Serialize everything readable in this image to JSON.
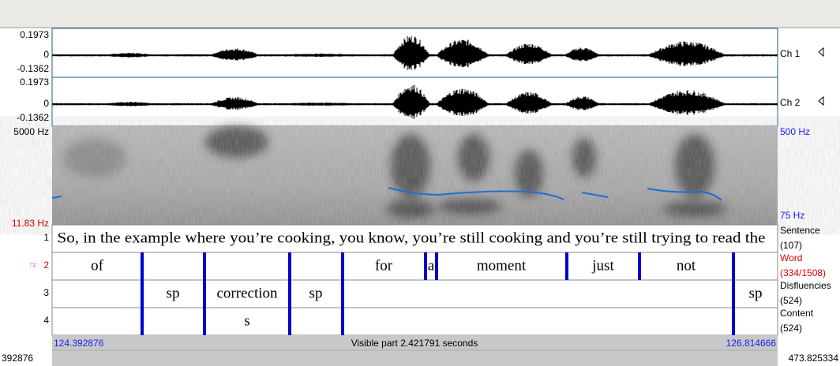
{
  "axes": {
    "ch_max": "0.1973",
    "ch_zero": "0",
    "ch_min": "-0.1362",
    "spec_max": "5000 Hz",
    "spec_min": "11.83 Hz",
    "pitch_max": "500 Hz",
    "pitch_min": "75 Hz"
  },
  "channels": [
    "Ch 1",
    "Ch 2"
  ],
  "tiers": [
    {
      "number": "1",
      "name": "Sentence",
      "count": "(107)",
      "labels": [
        "So, in the example where you’re cooking, you know, you’re still cooking and you’re still trying to read the"
      ]
    },
    {
      "marker": "☞",
      "number": "2",
      "name": "Word",
      "count": "(334/1508)",
      "labels": [
        "of",
        "for",
        "a",
        "moment",
        "just",
        "not"
      ]
    },
    {
      "number": "3",
      "name": "Disfluencies",
      "count": "(524)",
      "labels": [
        "sp",
        "correction",
        "sp",
        "sp"
      ]
    },
    {
      "number": "4",
      "name": "Content",
      "count": "(524)",
      "labels": [
        "s"
      ]
    }
  ],
  "footer": {
    "start": "124.392876",
    "visible": "Visible part 2.421791 seconds",
    "end": "126.814666",
    "left_edge": "392876",
    "right_edge": "473.825334"
  }
}
